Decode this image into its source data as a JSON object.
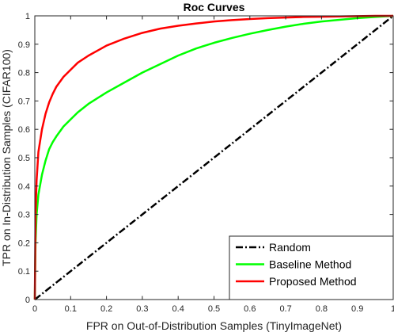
{
  "chart_data": {
    "type": "line",
    "title": "Roc Curves",
    "xlabel": "FPR on Out-of-Distribution Samples (TinyImageNet)",
    "ylabel": "TPR on In-Distribution Samples (CIFAR100)",
    "xlim": [
      0,
      1
    ],
    "ylim": [
      0,
      1
    ],
    "xticks": [
      0,
      0.1,
      0.2,
      0.3,
      0.4,
      0.5,
      0.6,
      0.7,
      0.8,
      0.9,
      1
    ],
    "yticks": [
      0,
      0.1,
      0.2,
      0.3,
      0.4,
      0.5,
      0.6,
      0.7,
      0.8,
      0.9,
      1
    ],
    "xtick_labels": [
      "0",
      "0.1",
      "0.2",
      "0.3",
      "0.4",
      "0.5",
      "0.6",
      "0.7",
      "0.8",
      "0.9",
      "1"
    ],
    "ytick_labels": [
      "0",
      "0.1",
      "0.2",
      "0.3",
      "0.4",
      "0.5",
      "0.6",
      "0.7",
      "0.8",
      "0.9",
      "1"
    ],
    "grid": false,
    "legend_position": "bottom-right",
    "series": [
      {
        "name": "Random",
        "color": "#000000",
        "dash": "dash-dot",
        "x": [
          0,
          1
        ],
        "y": [
          0,
          1
        ]
      },
      {
        "name": "Baseline Method",
        "color": "#00ff00",
        "dash": "solid",
        "x": [
          0,
          0.002,
          0.005,
          0.01,
          0.02,
          0.03,
          0.04,
          0.05,
          0.06,
          0.08,
          0.1,
          0.12,
          0.15,
          0.2,
          0.25,
          0.3,
          0.35,
          0.4,
          0.45,
          0.5,
          0.55,
          0.6,
          0.65,
          0.7,
          0.75,
          0.8,
          0.85,
          0.9,
          0.95,
          1.0
        ],
        "y": [
          0,
          0.2,
          0.3,
          0.37,
          0.44,
          0.49,
          0.53,
          0.555,
          0.575,
          0.61,
          0.635,
          0.66,
          0.69,
          0.73,
          0.765,
          0.8,
          0.83,
          0.86,
          0.885,
          0.905,
          0.922,
          0.937,
          0.95,
          0.962,
          0.972,
          0.98,
          0.986,
          0.992,
          0.996,
          1.0
        ]
      },
      {
        "name": "Proposed Method",
        "color": "#ff0000",
        "dash": "solid",
        "x": [
          0,
          0.002,
          0.005,
          0.01,
          0.02,
          0.03,
          0.04,
          0.05,
          0.06,
          0.08,
          0.1,
          0.12,
          0.15,
          0.2,
          0.25,
          0.3,
          0.35,
          0.4,
          0.45,
          0.5,
          0.55,
          0.6,
          0.65,
          0.7,
          0.75,
          0.8,
          0.85,
          0.9,
          0.95,
          1.0
        ],
        "y": [
          0,
          0.3,
          0.42,
          0.52,
          0.6,
          0.655,
          0.695,
          0.725,
          0.75,
          0.785,
          0.81,
          0.835,
          0.86,
          0.895,
          0.92,
          0.94,
          0.955,
          0.965,
          0.973,
          0.98,
          0.985,
          0.989,
          0.992,
          0.994,
          0.996,
          0.997,
          0.998,
          0.999,
          1.0,
          1.0
        ]
      }
    ]
  }
}
